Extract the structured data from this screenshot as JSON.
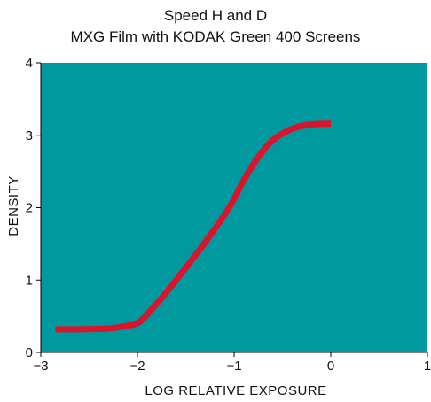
{
  "chart_data": {
    "type": "line",
    "title": "Speed H and D",
    "subtitle": "MXG Film with KODAK Green 400 Screens",
    "xlabel": "LOG RELATIVE EXPOSURE",
    "ylabel": "DENSITY",
    "xlim": [
      -3,
      1
    ],
    "ylim": [
      0,
      4
    ],
    "x_ticks": [
      -3,
      -2,
      -1,
      0,
      1
    ],
    "y_ticks": [
      0,
      1,
      2,
      3,
      4
    ],
    "x_tick_labels": [
      "−3",
      "−2",
      "−1",
      "0",
      "1"
    ],
    "y_tick_labels": [
      "0",
      "1",
      "2",
      "3",
      "4"
    ],
    "grid": false,
    "legend": "none",
    "plot_background": "#00999F",
    "series": [
      {
        "color": "#D9152E",
        "x": [
          -2.85,
          -2.6,
          -2.3,
          -2.1,
          -1.98,
          -1.85,
          -1.7,
          -1.5,
          -1.3,
          -1.1,
          -1.0,
          -0.9,
          -0.75,
          -0.6,
          -0.4,
          -0.2,
          0.0
        ],
        "y": [
          0.32,
          0.32,
          0.33,
          0.37,
          0.42,
          0.6,
          0.83,
          1.17,
          1.52,
          1.9,
          2.12,
          2.38,
          2.7,
          2.93,
          3.09,
          3.15,
          3.16
        ]
      }
    ]
  }
}
